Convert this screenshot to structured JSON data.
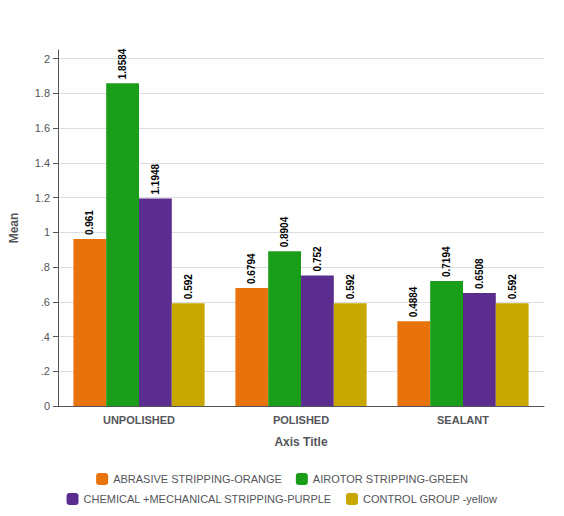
{
  "chart_data": {
    "type": "bar",
    "categories": [
      "UNPOLISHED",
      "POLISHED",
      "SEALANT"
    ],
    "series": [
      {
        "name": "ABRASIVE STRIPPING-ORANGE",
        "color": "#E8720C",
        "values": [
          0.961,
          0.6794,
          0.4884
        ]
      },
      {
        "name": "AIROTOR STRIPPING-GREEN",
        "color": "#1A9E1A",
        "values": [
          1.8584,
          0.8904,
          0.7194
        ]
      },
      {
        "name": "CHEMICAL +MECHANICAL STRIPPING-PURPLE",
        "color": "#5B2D8E",
        "values": [
          1.1948,
          0.752,
          0.6508
        ]
      },
      {
        "name": "CONTROL GROUP -yellow",
        "color": "#C8A800",
        "values": [
          0.592,
          0.592,
          0.592
        ]
      }
    ],
    "xlabel": "Axis Title",
    "ylabel": "Mean",
    "ylim": [
      0,
      2.05
    ],
    "yticks": [
      0,
      {
        "value": 0.2,
        "label": ".2"
      },
      {
        "value": 0.4,
        "label": ".4"
      },
      {
        "value": 0.6,
        "label": ".6"
      },
      {
        "value": 0.8,
        "label": ".8"
      },
      1,
      1.2,
      1.4,
      1.6,
      1.8,
      2
    ],
    "grid": true,
    "legend": "bottom",
    "data_labels": true
  }
}
